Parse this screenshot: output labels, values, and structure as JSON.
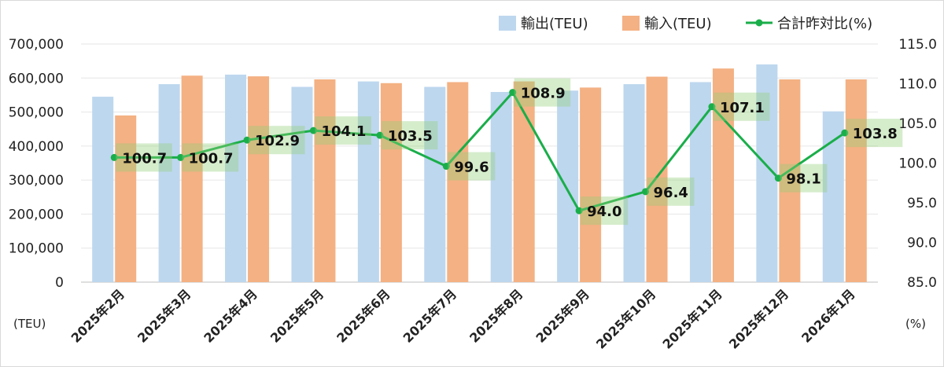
{
  "chart_data": {
    "type": "bar",
    "categories": [
      "2025年2月",
      "2025年3月",
      "2025年4月",
      "2025年5月",
      "2025年6月",
      "2025年7月",
      "2025年8月",
      "2025年9月",
      "2025年10月",
      "2025年11月",
      "2025年12月",
      "2026年1月"
    ],
    "series": [
      {
        "name": "輸出(TEU)",
        "type": "bar",
        "axis": "left",
        "color": "#bdd7ee",
        "values": [
          545000,
          582000,
          610000,
          574000,
          590000,
          574000,
          559000,
          563000,
          582000,
          588000,
          640000,
          502000
        ]
      },
      {
        "name": "輸入(TEU)",
        "type": "bar",
        "axis": "left",
        "color": "#f4b183",
        "values": [
          490000,
          607000,
          605000,
          596000,
          585000,
          588000,
          590000,
          572000,
          604000,
          628000,
          596000,
          596000
        ]
      },
      {
        "name": "合計昨対比(%)",
        "type": "line",
        "axis": "right",
        "color": "#1aae4a",
        "values": [
          100.7,
          100.7,
          102.9,
          104.1,
          103.5,
          99.6,
          108.9,
          94.0,
          96.4,
          107.1,
          98.1,
          103.8
        ],
        "labels": [
          "100.7",
          "100.7",
          "102.9",
          "104.1",
          "103.5",
          "99.6",
          "108.9",
          "94.0",
          "96.4",
          "107.1",
          "98.1",
          "103.8"
        ]
      }
    ],
    "y_left": {
      "label": "(TEU)",
      "min": 0,
      "max": 700000,
      "ticks": [
        "0",
        "100,000",
        "200,000",
        "300,000",
        "400,000",
        "500,000",
        "600,000",
        "700,000"
      ]
    },
    "y_right": {
      "label": "(%)",
      "min": 85,
      "max": 115,
      "ticks": [
        "85.0",
        "90.0",
        "95.0",
        "100.0",
        "105.0",
        "110.0",
        "115.0"
      ]
    },
    "grid": true,
    "legend_position": "top-right"
  }
}
